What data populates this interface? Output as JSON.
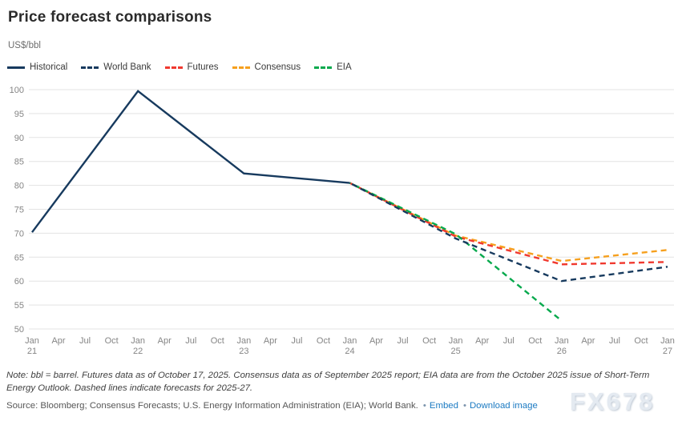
{
  "header": {
    "title": "Price forecast comparisons",
    "subtitle": "US$/bbl"
  },
  "chart_data": {
    "type": "line",
    "title": "Price forecast comparisons",
    "ylabel": "US$/bbl",
    "xlabel": "",
    "ylim": [
      50,
      100
    ],
    "ytick_step": 5,
    "grid": "horizontal",
    "legend_position": "top",
    "categories": [
      {
        "m": "Jan",
        "y": "21"
      },
      {
        "m": "Apr"
      },
      {
        "m": "Jul"
      },
      {
        "m": "Oct"
      },
      {
        "m": "Jan",
        "y": "22"
      },
      {
        "m": "Apr"
      },
      {
        "m": "Jul"
      },
      {
        "m": "Oct"
      },
      {
        "m": "Jan",
        "y": "23"
      },
      {
        "m": "Apr"
      },
      {
        "m": "Jul"
      },
      {
        "m": "Oct"
      },
      {
        "m": "Jan",
        "y": "24"
      },
      {
        "m": "Apr"
      },
      {
        "m": "Jul"
      },
      {
        "m": "Oct"
      },
      {
        "m": "Jan",
        "y": "25"
      },
      {
        "m": "Apr"
      },
      {
        "m": "Jul"
      },
      {
        "m": "Oct"
      },
      {
        "m": "Jan",
        "y": "26"
      },
      {
        "m": "Apr"
      },
      {
        "m": "Jul"
      },
      {
        "m": "Oct"
      },
      {
        "m": "Jan",
        "y": "27"
      }
    ],
    "series": [
      {
        "name": "Consensus",
        "color": "#f6a01e",
        "dashed": true,
        "points": [
          [
            12,
            80.5
          ],
          [
            16,
            69.5
          ],
          [
            20,
            64.2
          ],
          [
            24,
            66.5
          ]
        ]
      },
      {
        "name": "Futures",
        "color": "#f0392f",
        "dashed": true,
        "points": [
          [
            12,
            80.5
          ],
          [
            16,
            69.3
          ],
          [
            20,
            63.5
          ],
          [
            24,
            64.0
          ]
        ]
      },
      {
        "name": "EIA",
        "color": "#06a94d",
        "dashed": true,
        "points": [
          [
            12,
            80.5
          ],
          [
            16,
            69.8
          ],
          [
            20,
            51.7
          ]
        ]
      },
      {
        "name": "World Bank",
        "color": "#173a5e",
        "dashed": true,
        "points": [
          [
            12,
            80.5
          ],
          [
            16,
            68.9
          ],
          [
            20,
            60.0
          ],
          [
            24,
            63.0
          ]
        ]
      },
      {
        "name": "Historical",
        "color": "#173a5e",
        "dashed": false,
        "points": [
          [
            0,
            70.2
          ],
          [
            4,
            99.7
          ],
          [
            8,
            82.5
          ],
          [
            12,
            80.5
          ]
        ]
      }
    ],
    "legend_order": [
      "Historical",
      "World Bank",
      "Futures",
      "Consensus",
      "EIA"
    ],
    "note": "Dashed lines indicate forecasts for 2025-27"
  },
  "footer": {
    "note": "Note: bbl = barrel. Futures data as of October 17, 2025. Consensus data as of September 2025 report; EIA data are from the October 2025 issue of Short-Term Energy Outlook. Dashed lines indicate forecasts for 2025-27.",
    "source": "Source: Bloomberg; Consensus Forecasts; U.S. Energy Information Administration (EIA); World Bank.",
    "links": [
      {
        "label": "Embed"
      },
      {
        "label": "Download image"
      }
    ],
    "watermark": "FX678"
  }
}
